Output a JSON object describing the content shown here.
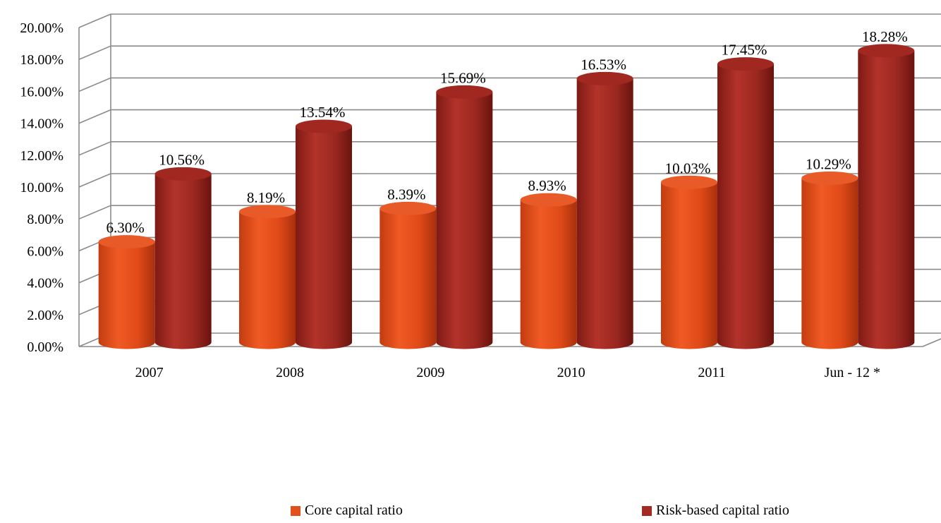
{
  "chart_data": {
    "type": "bar",
    "style": "3d-cylinder",
    "categories": [
      "2007",
      "2008",
      "2009",
      "2010",
      "2011",
      "Jun - 12 *"
    ],
    "series": [
      {
        "name": "Core capital ratio",
        "color": "#e2501e",
        "values": [
          6.3,
          8.19,
          8.39,
          8.93,
          10.03,
          10.29
        ],
        "labels": [
          "6.30%",
          "8.19%",
          "8.39%",
          "8.93%",
          "10.03%",
          "10.29%"
        ]
      },
      {
        "name": "Risk-based capital ratio",
        "color": "#a32b23",
        "values": [
          10.56,
          13.54,
          15.69,
          16.53,
          17.45,
          18.28
        ],
        "labels": [
          "10.56%",
          "13.54%",
          "15.69%",
          "16.53%",
          "17.45%",
          "18.28%"
        ]
      }
    ],
    "ylim": [
      0,
      20
    ],
    "yticks": [
      "0.00%",
      "2.00%",
      "4.00%",
      "6.00%",
      "8.00%",
      "10.00%",
      "12.00%",
      "14.00%",
      "16.00%",
      "18.00%",
      "20.00%"
    ],
    "grid": true,
    "legend": "bottom"
  }
}
